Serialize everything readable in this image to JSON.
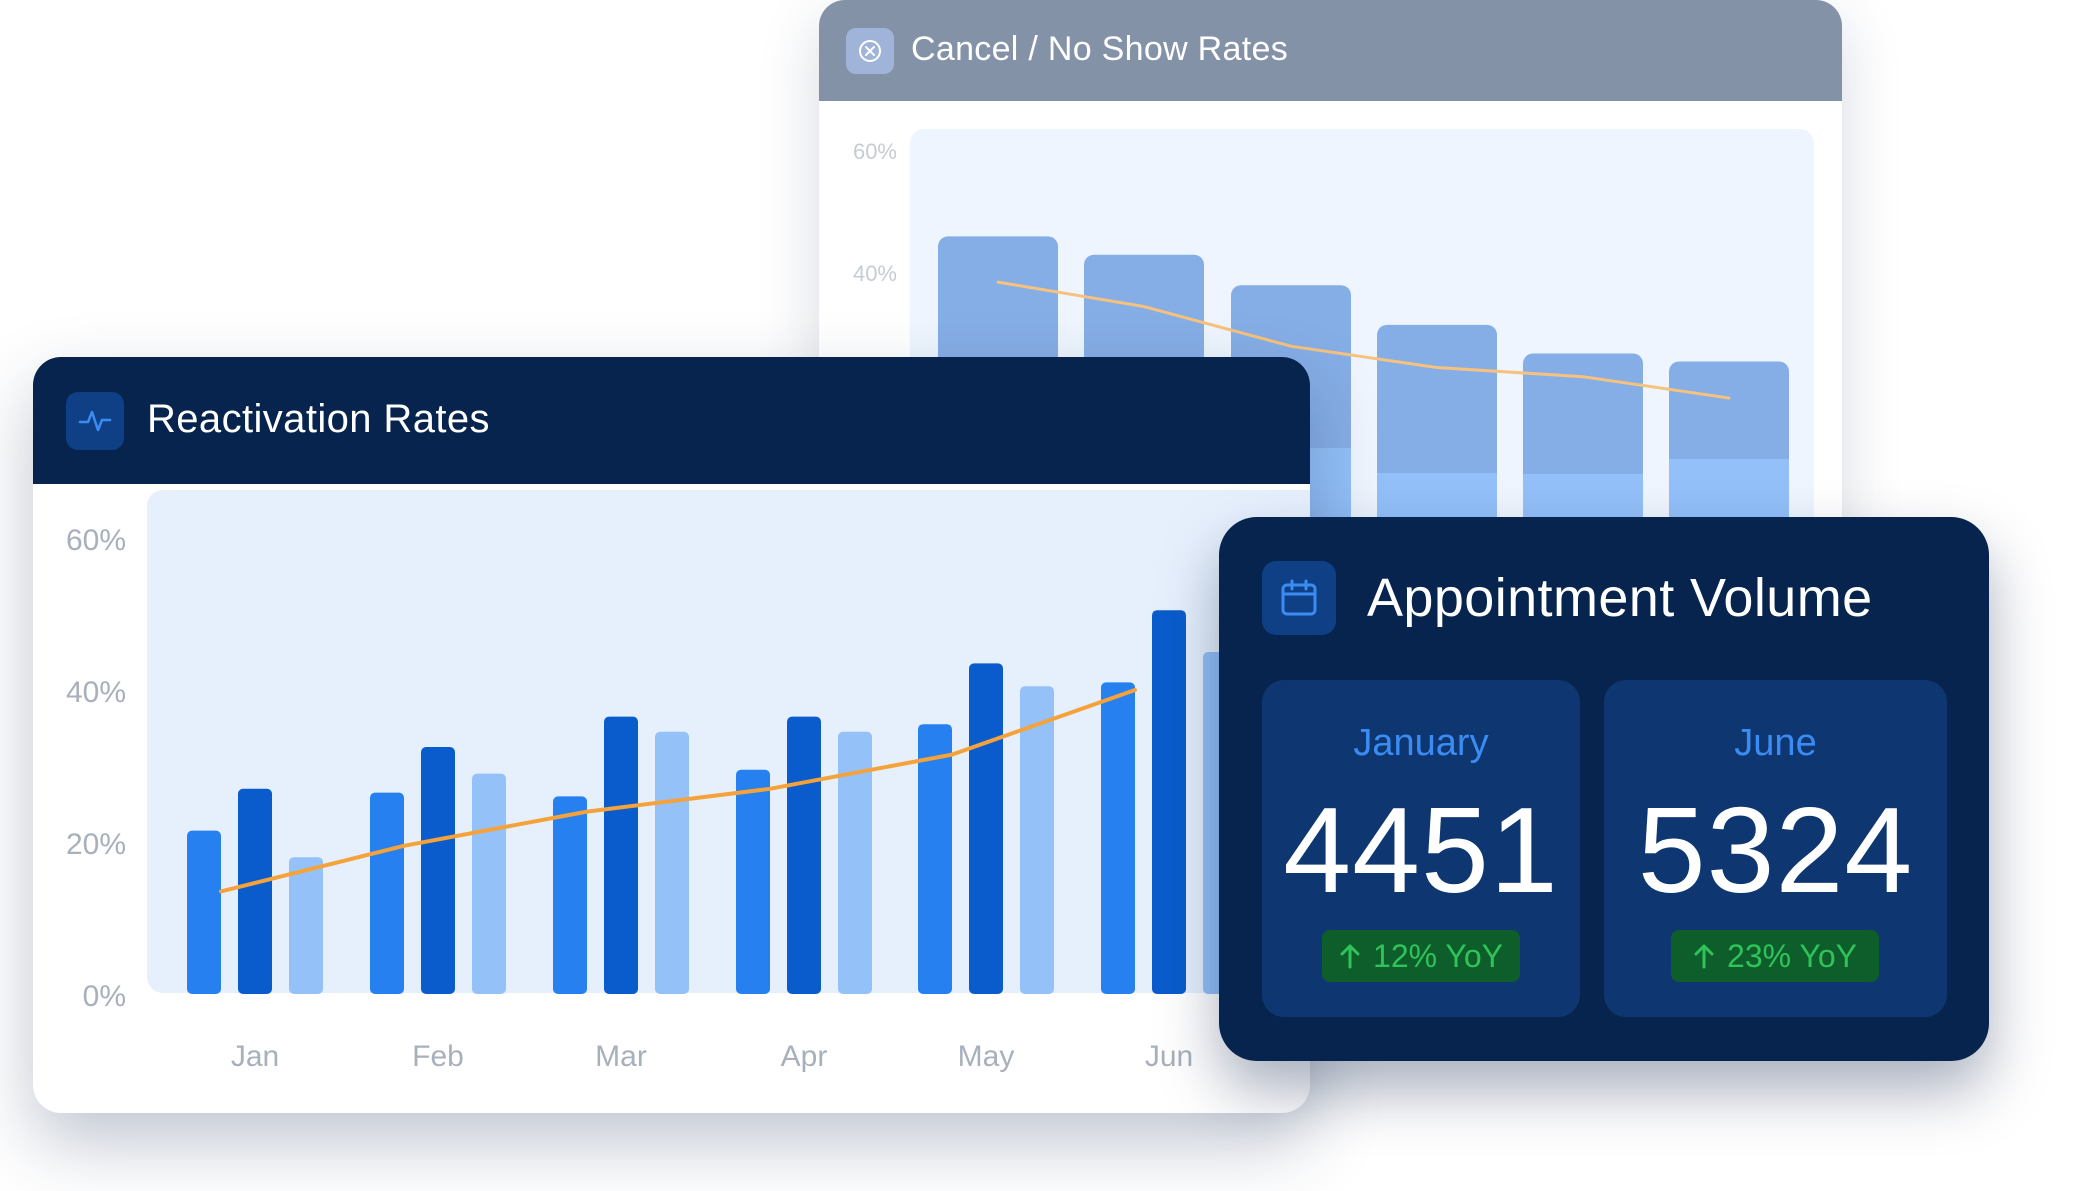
{
  "cancel_card": {
    "title": "Cancel / No Show Rates",
    "icon": "x-circle-icon"
  },
  "reactivation_card": {
    "title": "Reactivation Rates",
    "icon": "activity-pulse-icon"
  },
  "appointment_card": {
    "title": "Appointment Volume",
    "icon": "calendar-icon",
    "stats": [
      {
        "month": "January",
        "value": "4451",
        "change": "12% YoY",
        "arrow": "arrow-up-icon"
      },
      {
        "month": "June",
        "value": "5324",
        "change": "23% YoY",
        "arrow": "arrow-up-icon"
      }
    ]
  },
  "colors": {
    "navy": "#06244d",
    "bar_primary": "#2680f0",
    "bar_dark": "#0a5ccc",
    "bar_light": "#93c1f8",
    "trend_line": "#f5a23a",
    "positive": "#2fc35a"
  },
  "chart_data": [
    {
      "id": "reactivation",
      "type": "bar",
      "title": "Reactivation Rates",
      "categories": [
        "Jan",
        "Feb",
        "Mar",
        "Apr",
        "May",
        "Jun"
      ],
      "y_ticks": [
        "0%",
        "20%",
        "40%",
        "60%"
      ],
      "ylim": [
        0,
        60
      ],
      "series": [
        {
          "values": [
            21.5,
            26.5,
            26,
            29.5,
            35.5,
            41
          ]
        },
        {
          "values": [
            27,
            32.5,
            36.5,
            36.5,
            43.5,
            50.5
          ]
        },
        {
          "values": [
            18,
            29,
            34.5,
            34.5,
            40.5,
            45
          ]
        }
      ],
      "trend": [
        13.5,
        19.5,
        24,
        27,
        31.5,
        40
      ]
    },
    {
      "id": "cancel_no_show",
      "type": "bar",
      "title": "Cancel / No Show Rates",
      "y_ticks": [
        "40%",
        "60%"
      ],
      "ylim": [
        0,
        60
      ],
      "values": [
        46,
        43,
        38,
        31.5,
        26.8,
        25.5
      ],
      "trend": [
        38.5,
        34.5,
        28,
        24.5,
        23,
        19.5
      ]
    }
  ]
}
